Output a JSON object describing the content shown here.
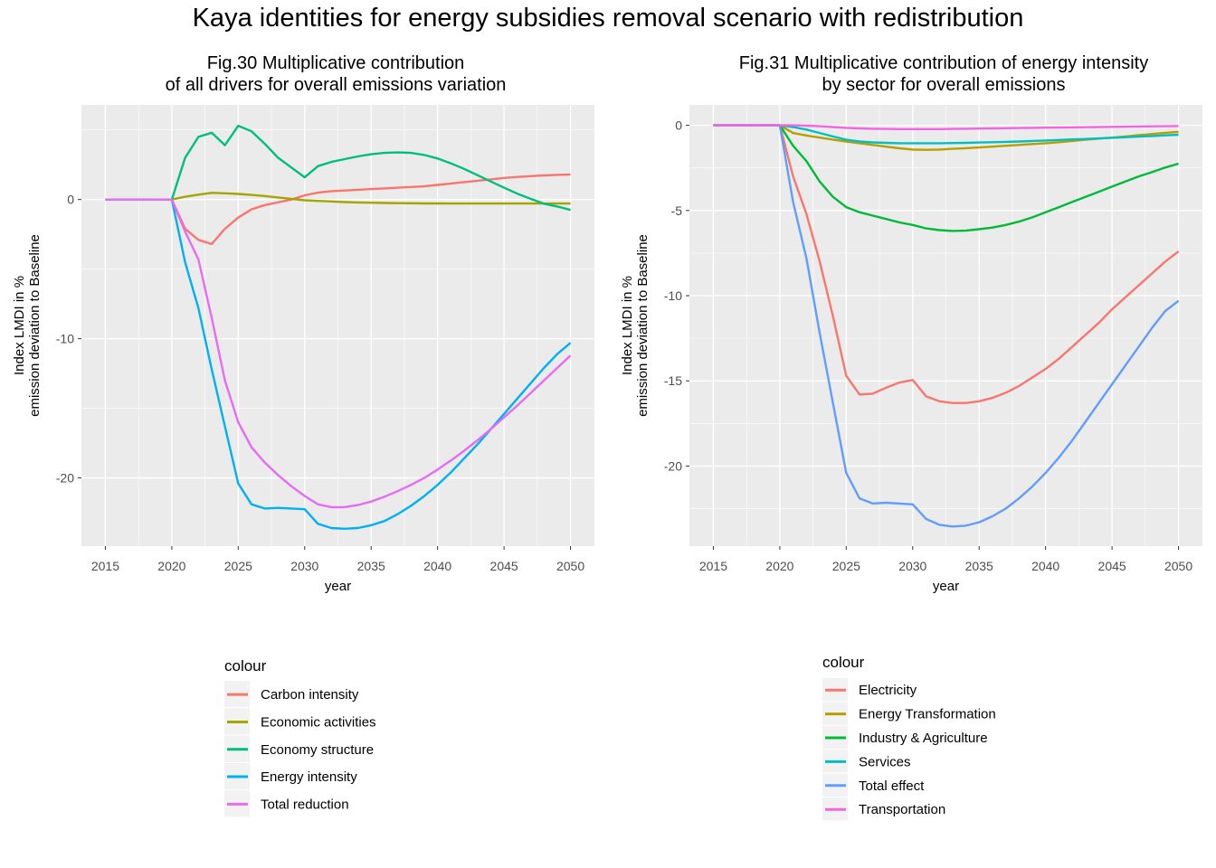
{
  "title": "Kaya identities for energy subsidies removal scenario with redistribution",
  "chart_data": [
    {
      "type": "line",
      "title_lines": [
        "Fig.30 Multiplicative contribution",
        "of all drivers for overall emissions variation"
      ],
      "xlabel": "year",
      "ylabel_lines": [
        "Index LMDI in %",
        "emission deviation to Baseline"
      ],
      "xlim": [
        2013.2,
        2051.8
      ],
      "ylim": [
        -24.9,
        6.8
      ],
      "xticks": [
        2015,
        2020,
        2025,
        2030,
        2035,
        2040,
        2045,
        2050
      ],
      "yticks": [
        0,
        -10,
        -20
      ],
      "legend_title": "colour",
      "legend_position": "bottom",
      "grid": true,
      "x": [
        2015,
        2016,
        2017,
        2018,
        2019,
        2020,
        2021,
        2022,
        2023,
        2024,
        2025,
        2026,
        2027,
        2028,
        2029,
        2030,
        2031,
        2032,
        2033,
        2034,
        2035,
        2036,
        2037,
        2038,
        2039,
        2040,
        2041,
        2042,
        2043,
        2044,
        2045,
        2046,
        2047,
        2048,
        2049,
        2050
      ],
      "series": [
        {
          "name": "Carbon intensity",
          "color": "#F8766D",
          "values": [
            0,
            0,
            0,
            0,
            0,
            0,
            -2.1,
            -2.9,
            -3.2,
            -2.1,
            -1.3,
            -0.7,
            -0.4,
            -0.2,
            0,
            0.3,
            0.5,
            0.6,
            0.65,
            0.7,
            0.75,
            0.8,
            0.85,
            0.9,
            0.95,
            1.05,
            1.15,
            1.25,
            1.35,
            1.45,
            1.55,
            1.62,
            1.68,
            1.73,
            1.77,
            1.8
          ]
        },
        {
          "name": "Economic activities",
          "color": "#A3A500",
          "values": [
            0,
            0,
            0,
            0,
            0,
            0,
            0.2,
            0.35,
            0.48,
            0.45,
            0.4,
            0.33,
            0.25,
            0.15,
            0.05,
            -0.05,
            -0.1,
            -0.14,
            -0.18,
            -0.21,
            -0.23,
            -0.25,
            -0.26,
            -0.27,
            -0.28,
            -0.28,
            -0.29,
            -0.29,
            -0.29,
            -0.29,
            -0.29,
            -0.29,
            -0.29,
            -0.29,
            -0.29,
            -0.29
          ]
        },
        {
          "name": "Economy structure",
          "color": "#00BF7D",
          "values": [
            0,
            0,
            0,
            0,
            0,
            0,
            3.0,
            4.5,
            4.8,
            3.9,
            5.3,
            4.9,
            4.0,
            3.0,
            2.3,
            1.6,
            2.4,
            2.7,
            2.9,
            3.1,
            3.25,
            3.35,
            3.38,
            3.35,
            3.2,
            2.95,
            2.6,
            2.2,
            1.75,
            1.3,
            0.85,
            0.42,
            0.05,
            -0.3,
            -0.5,
            -0.75
          ]
        },
        {
          "name": "Energy intensity",
          "color": "#00B0F6",
          "values": [
            0,
            0,
            0,
            0,
            0,
            0,
            -4.5,
            -7.8,
            -12.2,
            -16.3,
            -20.4,
            -21.9,
            -22.2,
            -22.15,
            -22.2,
            -22.25,
            -23.3,
            -23.6,
            -23.65,
            -23.6,
            -23.4,
            -23.1,
            -22.6,
            -22.0,
            -21.3,
            -20.5,
            -19.6,
            -18.6,
            -17.6,
            -16.5,
            -15.4,
            -14.3,
            -13.2,
            -12.1,
            -11.1,
            -10.3
          ]
        },
        {
          "name": "Total reduction",
          "color": "#E76BF3",
          "values": [
            0,
            0,
            0,
            0,
            0,
            0,
            -2.3,
            -4.3,
            -8.5,
            -13.0,
            -16.0,
            -17.8,
            -18.9,
            -19.8,
            -20.6,
            -21.3,
            -21.9,
            -22.1,
            -22.1,
            -21.95,
            -21.7,
            -21.35,
            -20.95,
            -20.5,
            -20.0,
            -19.4,
            -18.75,
            -18.05,
            -17.3,
            -16.5,
            -15.65,
            -14.8,
            -13.9,
            -13.0,
            -12.1,
            -11.2
          ]
        }
      ]
    },
    {
      "type": "line",
      "title_lines": [
        "Fig.31 Multiplicative contribution of energy intensity",
        "by sector for overall emissions"
      ],
      "xlabel": "year",
      "ylabel_lines": [
        "Index LMDI in %",
        "emission deviation to Baseline"
      ],
      "xlim": [
        2013.2,
        2051.8
      ],
      "ylim": [
        -24.7,
        1.2
      ],
      "xticks": [
        2015,
        2020,
        2025,
        2030,
        2035,
        2040,
        2045,
        2050
      ],
      "yticks": [
        0,
        -5,
        -10,
        -15,
        -20
      ],
      "legend_title": "colour",
      "legend_position": "bottom",
      "grid": true,
      "x": [
        2015,
        2016,
        2017,
        2018,
        2019,
        2020,
        2021,
        2022,
        2023,
        2024,
        2025,
        2026,
        2027,
        2028,
        2029,
        2030,
        2031,
        2032,
        2033,
        2034,
        2035,
        2036,
        2037,
        2038,
        2039,
        2040,
        2041,
        2042,
        2043,
        2044,
        2045,
        2046,
        2047,
        2048,
        2049,
        2050
      ],
      "series": [
        {
          "name": "Electricity",
          "color": "#F8766D",
          "values": [
            0,
            0,
            0,
            0,
            0,
            0,
            -3.0,
            -5.2,
            -8.0,
            -11.2,
            -14.7,
            -15.8,
            -15.75,
            -15.4,
            -15.1,
            -14.95,
            -15.9,
            -16.2,
            -16.3,
            -16.3,
            -16.2,
            -16.0,
            -15.7,
            -15.3,
            -14.8,
            -14.3,
            -13.7,
            -13.0,
            -12.3,
            -11.6,
            -10.8,
            -10.1,
            -9.4,
            -8.7,
            -8.0,
            -7.4
          ]
        },
        {
          "name": "Energy Transformation",
          "color": "#B79F00",
          "values": [
            0,
            0,
            0,
            0,
            0,
            0,
            -0.45,
            -0.6,
            -0.72,
            -0.84,
            -0.95,
            -1.05,
            -1.15,
            -1.25,
            -1.35,
            -1.42,
            -1.44,
            -1.42,
            -1.38,
            -1.34,
            -1.3,
            -1.25,
            -1.2,
            -1.15,
            -1.1,
            -1.05,
            -0.99,
            -0.92,
            -0.85,
            -0.78,
            -0.72,
            -0.65,
            -0.58,
            -0.51,
            -0.44,
            -0.38
          ]
        },
        {
          "name": "Industry & Agriculture",
          "color": "#00BA38",
          "values": [
            0,
            0,
            0,
            0,
            0,
            0,
            -1.2,
            -2.1,
            -3.3,
            -4.2,
            -4.8,
            -5.1,
            -5.3,
            -5.5,
            -5.7,
            -5.85,
            -6.05,
            -6.15,
            -6.2,
            -6.18,
            -6.1,
            -6.0,
            -5.85,
            -5.65,
            -5.4,
            -5.1,
            -4.8,
            -4.5,
            -4.2,
            -3.9,
            -3.6,
            -3.3,
            -3.0,
            -2.75,
            -2.48,
            -2.25
          ]
        },
        {
          "name": "Services",
          "color": "#00BFC4",
          "values": [
            0,
            0,
            0,
            0,
            0,
            0,
            -0.1,
            -0.25,
            -0.45,
            -0.65,
            -0.85,
            -0.95,
            -1.0,
            -1.03,
            -1.05,
            -1.05,
            -1.05,
            -1.05,
            -1.04,
            -1.03,
            -1.01,
            -0.99,
            -0.97,
            -0.95,
            -0.92,
            -0.89,
            -0.86,
            -0.83,
            -0.8,
            -0.77,
            -0.73,
            -0.7,
            -0.66,
            -0.63,
            -0.59,
            -0.55
          ]
        },
        {
          "name": "Total effect",
          "color": "#619CFF",
          "values": [
            0,
            0,
            0,
            0,
            0,
            0,
            -4.5,
            -7.8,
            -12.2,
            -16.3,
            -20.4,
            -21.9,
            -22.2,
            -22.15,
            -22.2,
            -22.25,
            -23.1,
            -23.45,
            -23.55,
            -23.5,
            -23.3,
            -22.95,
            -22.5,
            -21.9,
            -21.2,
            -20.4,
            -19.5,
            -18.5,
            -17.4,
            -16.3,
            -15.2,
            -14.1,
            -13.0,
            -11.9,
            -10.9,
            -10.3
          ]
        },
        {
          "name": "Transportation",
          "color": "#F564E3",
          "values": [
            0,
            0,
            0,
            0,
            0,
            0,
            0,
            -0.02,
            -0.05,
            -0.1,
            -0.15,
            -0.18,
            -0.2,
            -0.21,
            -0.22,
            -0.22,
            -0.22,
            -0.22,
            -0.21,
            -0.2,
            -0.19,
            -0.18,
            -0.17,
            -0.16,
            -0.15,
            -0.14,
            -0.13,
            -0.12,
            -0.11,
            -0.1,
            -0.09,
            -0.08,
            -0.07,
            -0.06,
            -0.05,
            -0.04
          ]
        }
      ]
    }
  ]
}
